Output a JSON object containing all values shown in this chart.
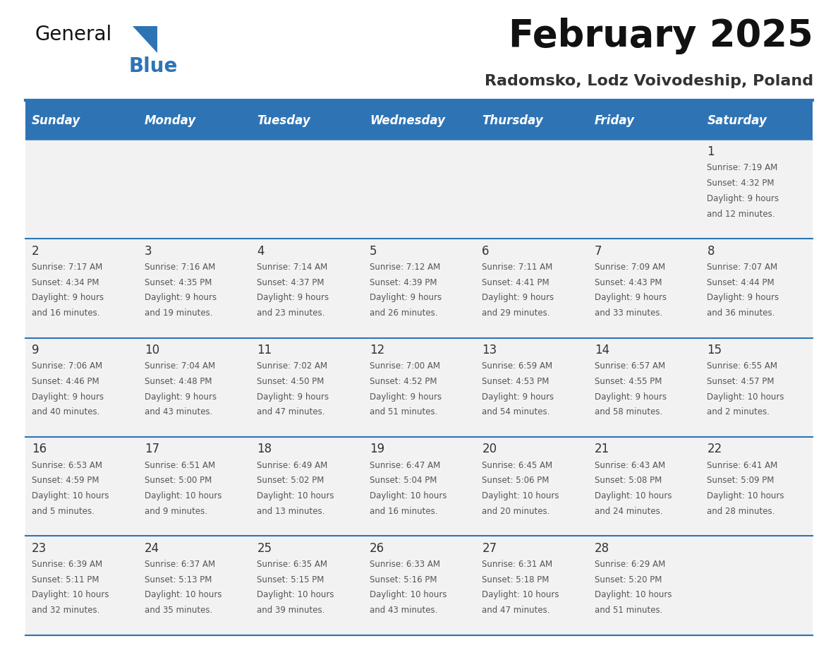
{
  "title": "February 2025",
  "subtitle": "Radomsko, Lodz Voivodeship, Poland",
  "header_bg": "#2E74B5",
  "header_text": "#FFFFFF",
  "cell_bg": "#F2F2F2",
  "day_names": [
    "Sunday",
    "Monday",
    "Tuesday",
    "Wednesday",
    "Thursday",
    "Friday",
    "Saturday"
  ],
  "days": [
    {
      "day": 1,
      "col": 6,
      "row": 0,
      "sunrise": "7:19 AM",
      "sunset": "4:32 PM",
      "daylight_h": "9 hours",
      "daylight_m": "12 minutes."
    },
    {
      "day": 2,
      "col": 0,
      "row": 1,
      "sunrise": "7:17 AM",
      "sunset": "4:34 PM",
      "daylight_h": "9 hours",
      "daylight_m": "16 minutes."
    },
    {
      "day": 3,
      "col": 1,
      "row": 1,
      "sunrise": "7:16 AM",
      "sunset": "4:35 PM",
      "daylight_h": "9 hours",
      "daylight_m": "19 minutes."
    },
    {
      "day": 4,
      "col": 2,
      "row": 1,
      "sunrise": "7:14 AM",
      "sunset": "4:37 PM",
      "daylight_h": "9 hours",
      "daylight_m": "23 minutes."
    },
    {
      "day": 5,
      "col": 3,
      "row": 1,
      "sunrise": "7:12 AM",
      "sunset": "4:39 PM",
      "daylight_h": "9 hours",
      "daylight_m": "26 minutes."
    },
    {
      "day": 6,
      "col": 4,
      "row": 1,
      "sunrise": "7:11 AM",
      "sunset": "4:41 PM",
      "daylight_h": "9 hours",
      "daylight_m": "29 minutes."
    },
    {
      "day": 7,
      "col": 5,
      "row": 1,
      "sunrise": "7:09 AM",
      "sunset": "4:43 PM",
      "daylight_h": "9 hours",
      "daylight_m": "33 minutes."
    },
    {
      "day": 8,
      "col": 6,
      "row": 1,
      "sunrise": "7:07 AM",
      "sunset": "4:44 PM",
      "daylight_h": "9 hours",
      "daylight_m": "36 minutes."
    },
    {
      "day": 9,
      "col": 0,
      "row": 2,
      "sunrise": "7:06 AM",
      "sunset": "4:46 PM",
      "daylight_h": "9 hours",
      "daylight_m": "40 minutes."
    },
    {
      "day": 10,
      "col": 1,
      "row": 2,
      "sunrise": "7:04 AM",
      "sunset": "4:48 PM",
      "daylight_h": "9 hours",
      "daylight_m": "43 minutes."
    },
    {
      "day": 11,
      "col": 2,
      "row": 2,
      "sunrise": "7:02 AM",
      "sunset": "4:50 PM",
      "daylight_h": "9 hours",
      "daylight_m": "47 minutes."
    },
    {
      "day": 12,
      "col": 3,
      "row": 2,
      "sunrise": "7:00 AM",
      "sunset": "4:52 PM",
      "daylight_h": "9 hours",
      "daylight_m": "51 minutes."
    },
    {
      "day": 13,
      "col": 4,
      "row": 2,
      "sunrise": "6:59 AM",
      "sunset": "4:53 PM",
      "daylight_h": "9 hours",
      "daylight_m": "54 minutes."
    },
    {
      "day": 14,
      "col": 5,
      "row": 2,
      "sunrise": "6:57 AM",
      "sunset": "4:55 PM",
      "daylight_h": "9 hours",
      "daylight_m": "58 minutes."
    },
    {
      "day": 15,
      "col": 6,
      "row": 2,
      "sunrise": "6:55 AM",
      "sunset": "4:57 PM",
      "daylight_h": "10 hours",
      "daylight_m": "2 minutes."
    },
    {
      "day": 16,
      "col": 0,
      "row": 3,
      "sunrise": "6:53 AM",
      "sunset": "4:59 PM",
      "daylight_h": "10 hours",
      "daylight_m": "5 minutes."
    },
    {
      "day": 17,
      "col": 1,
      "row": 3,
      "sunrise": "6:51 AM",
      "sunset": "5:00 PM",
      "daylight_h": "10 hours",
      "daylight_m": "9 minutes."
    },
    {
      "day": 18,
      "col": 2,
      "row": 3,
      "sunrise": "6:49 AM",
      "sunset": "5:02 PM",
      "daylight_h": "10 hours",
      "daylight_m": "13 minutes."
    },
    {
      "day": 19,
      "col": 3,
      "row": 3,
      "sunrise": "6:47 AM",
      "sunset": "5:04 PM",
      "daylight_h": "10 hours",
      "daylight_m": "16 minutes."
    },
    {
      "day": 20,
      "col": 4,
      "row": 3,
      "sunrise": "6:45 AM",
      "sunset": "5:06 PM",
      "daylight_h": "10 hours",
      "daylight_m": "20 minutes."
    },
    {
      "day": 21,
      "col": 5,
      "row": 3,
      "sunrise": "6:43 AM",
      "sunset": "5:08 PM",
      "daylight_h": "10 hours",
      "daylight_m": "24 minutes."
    },
    {
      "day": 22,
      "col": 6,
      "row": 3,
      "sunrise": "6:41 AM",
      "sunset": "5:09 PM",
      "daylight_h": "10 hours",
      "daylight_m": "28 minutes."
    },
    {
      "day": 23,
      "col": 0,
      "row": 4,
      "sunrise": "6:39 AM",
      "sunset": "5:11 PM",
      "daylight_h": "10 hours",
      "daylight_m": "32 minutes."
    },
    {
      "day": 24,
      "col": 1,
      "row": 4,
      "sunrise": "6:37 AM",
      "sunset": "5:13 PM",
      "daylight_h": "10 hours",
      "daylight_m": "35 minutes."
    },
    {
      "day": 25,
      "col": 2,
      "row": 4,
      "sunrise": "6:35 AM",
      "sunset": "5:15 PM",
      "daylight_h": "10 hours",
      "daylight_m": "39 minutes."
    },
    {
      "day": 26,
      "col": 3,
      "row": 4,
      "sunrise": "6:33 AM",
      "sunset": "5:16 PM",
      "daylight_h": "10 hours",
      "daylight_m": "43 minutes."
    },
    {
      "day": 27,
      "col": 4,
      "row": 4,
      "sunrise": "6:31 AM",
      "sunset": "5:18 PM",
      "daylight_h": "10 hours",
      "daylight_m": "47 minutes."
    },
    {
      "day": 28,
      "col": 5,
      "row": 4,
      "sunrise": "6:29 AM",
      "sunset": "5:20 PM",
      "daylight_h": "10 hours",
      "daylight_m": "51 minutes."
    }
  ],
  "header_border_color": "#2E74B5",
  "cell_border_color": "#2E74B5",
  "text_color": "#333333",
  "info_text_color": "#555555",
  "title_fontsize": 38,
  "subtitle_fontsize": 16,
  "header_fontsize": 12,
  "day_num_fontsize": 12,
  "info_fontsize": 8.5
}
